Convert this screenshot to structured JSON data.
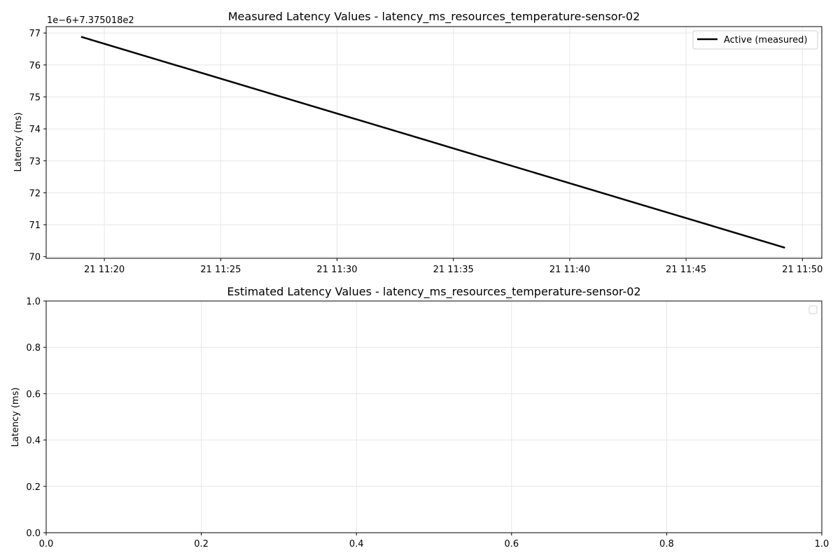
{
  "chart_data": [
    {
      "type": "line",
      "title": "Measured Latency Values - latency_ms_resources_temperature-sensor-02",
      "ylabel": "Latency (ms)",
      "xlabel": "",
      "y_offset_text": "1e−6+7.375018e2",
      "y_ticks": [
        70,
        71,
        72,
        73,
        74,
        75,
        76,
        77
      ],
      "ylim": [
        69.95,
        77.2
      ],
      "x_tick_labels": [
        "21 11:20",
        "21 11:25",
        "21 11:30",
        "21 11:35",
        "21 11:40",
        "21 11:45",
        "21 11:50"
      ],
      "x_tick_minutes": [
        20,
        25,
        30,
        35,
        40,
        45,
        50
      ],
      "xlim": [
        "11:17:30",
        "11:50:50"
      ],
      "grid": true,
      "legend": {
        "position": "upper-right",
        "entries": [
          "Active (measured)"
        ]
      },
      "series": [
        {
          "name": "Active (measured)",
          "color": "#000000",
          "x": [
            "11:19:00",
            "11:49:15"
          ],
          "values": [
            76.88,
            70.28
          ]
        }
      ]
    },
    {
      "type": "line",
      "title": "Estimated Latency Values - latency_ms_resources_temperature-sensor-02",
      "ylabel": "Latency (ms)",
      "xlabel": "",
      "x_ticks": [
        "0.0",
        "0.2",
        "0.4",
        "0.6",
        "0.8",
        "1.0"
      ],
      "y_ticks": [
        "0.0",
        "0.2",
        "0.4",
        "0.6",
        "0.8",
        "1.0"
      ],
      "xlim": [
        0,
        1
      ],
      "ylim": [
        0,
        1
      ],
      "grid": true,
      "legend": {
        "position": "upper-right",
        "entries": []
      },
      "series": []
    }
  ]
}
